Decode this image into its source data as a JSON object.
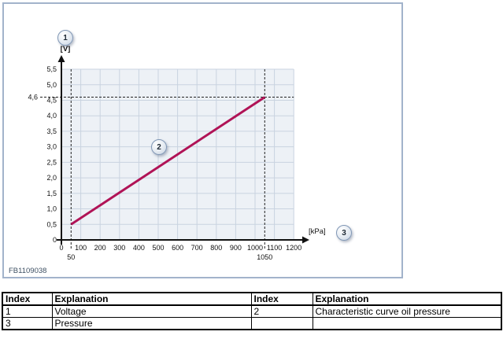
{
  "colors": {
    "curve": "#b01356",
    "figure_border": "#a2b3cb",
    "plot_bg": "#edf1f6",
    "grid": "#c9d3e0",
    "axis": "#111111",
    "dashed_ref": "#222222",
    "callout_border": "#8097b5",
    "figure_code_text": "#3e5063"
  },
  "chart_data": {
    "type": "line",
    "x_unit": "[kPa]",
    "y_unit": "[V]",
    "x_range": [
      0,
      1200
    ],
    "y_range": [
      0,
      5.5
    ],
    "x_tick_step": 100,
    "y_tick_step": 0.5,
    "x_tick_labels": [
      "0",
      "100",
      "200",
      "300",
      "400",
      "500",
      "600",
      "700",
      "800",
      "900",
      "1000",
      "1100",
      "1200"
    ],
    "y_tick_labels": [
      "0",
      "0,5",
      "1,0",
      "1,5",
      "2,0",
      "2,5",
      "3,0",
      "3,5",
      "4,0",
      "4,5",
      "5,0",
      "5,5"
    ],
    "grid": true,
    "series": [
      {
        "name": "Characteristic curve oil pressure",
        "color": "#b01356",
        "points": [
          [
            50,
            0.5
          ],
          [
            1050,
            4.6
          ]
        ]
      }
    ],
    "reference_lines": [
      {
        "axis": "x",
        "value": 50,
        "label": "50"
      },
      {
        "axis": "x",
        "value": 1050,
        "label": "1050"
      },
      {
        "axis": "y",
        "value": 4.6,
        "label": "4,6"
      }
    ],
    "callouts": [
      {
        "label": "1",
        "refers_to": "Voltage"
      },
      {
        "label": "2",
        "refers_to": "Characteristic curve oil pressure"
      },
      {
        "label": "3",
        "refers_to": "Pressure"
      }
    ],
    "figure_code": "FB1109038"
  },
  "legend_table": {
    "headers": [
      "Index",
      "Explanation",
      "Index",
      "Explanation"
    ],
    "rows": [
      [
        "1",
        "Voltage",
        "2",
        "Characteristic curve oil pressure"
      ],
      [
        "3",
        "Pressure",
        "",
        ""
      ]
    ]
  }
}
